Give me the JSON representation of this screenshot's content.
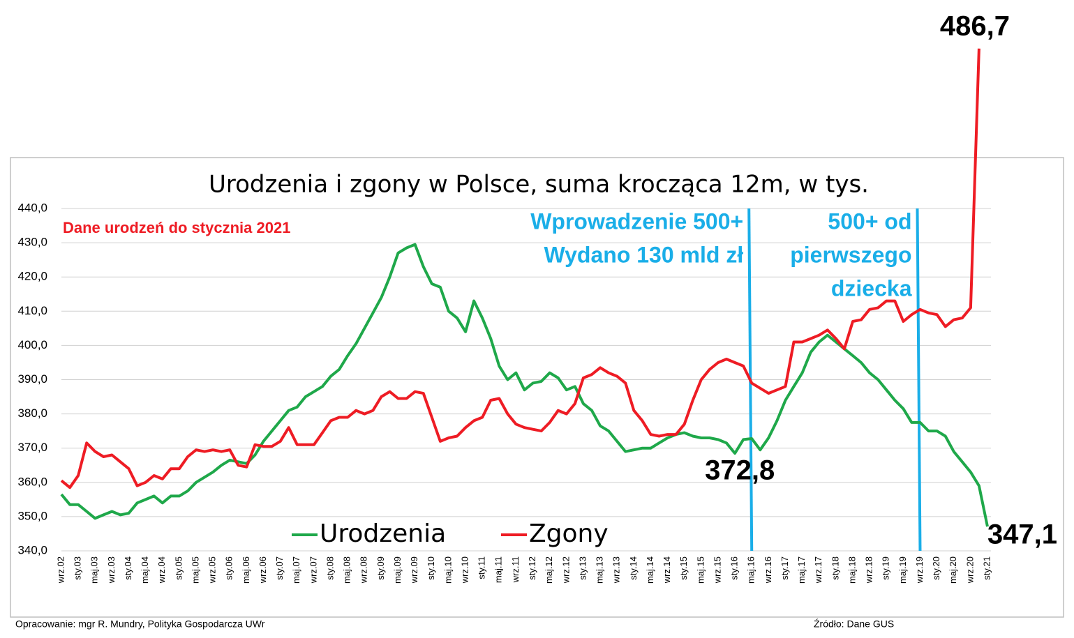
{
  "chart_data": {
    "type": "line",
    "title": "Urodzenia i zgony w Polsce, suma krocząca 12m, w tys.",
    "note": "Dane urodzeń do stycznia 2021",
    "footer_left": "Opracowanie: mgr R. Mundry, Polityka Gospodarcza UWr",
    "footer_right": "Źródło: Dane GUS",
    "annotations": [
      {
        "at": "maj.16",
        "lines": [
          "Wprowadzenie 500+",
          "Wydano 130 mld zł"
        ],
        "color": "#1aaee8"
      },
      {
        "at": "wrz.19",
        "lines": [
          "500+ od",
          "pierwszego",
          "dziecka"
        ],
        "color": "#1aaee8"
      }
    ],
    "ylim": [
      340,
      440
    ],
    "yticks": [
      {
        "value": 340,
        "label": "340,0"
      },
      {
        "value": 350,
        "label": "350,0"
      },
      {
        "value": 360,
        "label": "360,0"
      },
      {
        "value": 370,
        "label": "370,0"
      },
      {
        "value": 380,
        "label": "380,0"
      },
      {
        "value": 390,
        "label": "390,0"
      },
      {
        "value": 400,
        "label": "400,0"
      },
      {
        "value": 410,
        "label": "410,0"
      },
      {
        "value": 420,
        "label": "420,0"
      },
      {
        "value": 430,
        "label": "430,0"
      },
      {
        "value": 440,
        "label": "440,0"
      }
    ],
    "grid": true,
    "categories": [
      "wrz.02",
      null,
      "sty.03",
      null,
      "maj.03",
      null,
      "wrz.03",
      null,
      "sty.04",
      null,
      "maj.04",
      null,
      "wrz.04",
      null,
      "sty.05",
      null,
      "maj.05",
      null,
      "wrz.05",
      null,
      "sty.06",
      null,
      "maj.06",
      null,
      "wrz.06",
      null,
      "sty.07",
      null,
      "maj.07",
      null,
      "wrz.07",
      null,
      "sty.08",
      null,
      "maj.08",
      null,
      "wrz.08",
      null,
      "sty.09",
      null,
      "maj.09",
      null,
      "wrz.09",
      null,
      "sty.10",
      null,
      "maj.10",
      null,
      "wrz.10",
      null,
      "sty.11",
      null,
      "maj.11",
      null,
      "wrz.11",
      null,
      "sty.12",
      null,
      "maj.12",
      null,
      "wrz.12",
      null,
      "sty.13",
      null,
      "maj.13",
      null,
      "wrz.13",
      null,
      "sty.14",
      null,
      "maj.14",
      null,
      "wrz.14",
      null,
      "sty.15",
      null,
      "maj.15",
      null,
      "wrz.15",
      null,
      "sty.16",
      null,
      "maj.16",
      null,
      "wrz.16",
      null,
      "sty.17",
      null,
      "maj.17",
      null,
      "wrz.17",
      null,
      "sty.18",
      null,
      "maj.18",
      null,
      "wrz.18",
      null,
      "sty.19",
      null,
      "maj.19",
      null,
      "wrz.19",
      null,
      "sty.20",
      null,
      "maj.20",
      null,
      "wrz.20",
      null,
      "sty.21"
    ],
    "series": [
      {
        "name": "Urodzenia",
        "color": "#1fa84a",
        "values": [
          356.5,
          353.5,
          353.5,
          351.5,
          349.5,
          350.5,
          351.5,
          350.5,
          351,
          354,
          355,
          356,
          354,
          356,
          356,
          357.5,
          360,
          361.5,
          363,
          365,
          366.5,
          366,
          365.5,
          368,
          372,
          375,
          378,
          381,
          382,
          385,
          386.5,
          388,
          391,
          393,
          397,
          400.5,
          405,
          409.5,
          414,
          420,
          427,
          428.5,
          429.5,
          423,
          418,
          417,
          410,
          408,
          404,
          413,
          408,
          402,
          394,
          390,
          392,
          387,
          389,
          389.5,
          392,
          390.5,
          387,
          388,
          383,
          381,
          376.5,
          375,
          372,
          369,
          369.5,
          370,
          370,
          371.5,
          373,
          374,
          374.5,
          373.5,
          373,
          373,
          372.5,
          371.5,
          368.5,
          372.5,
          372.8,
          369.5,
          373,
          378,
          384,
          388,
          392,
          398,
          401,
          403,
          401,
          399,
          397,
          395,
          392,
          390,
          387,
          384,
          381.5,
          377.5,
          377.5,
          375,
          375,
          373.5,
          369,
          366,
          363,
          359,
          347.1
        ],
        "value_labels": [
          null,
          null,
          null,
          null,
          null,
          null,
          null,
          null,
          null,
          null,
          null,
          null,
          null,
          null,
          null,
          null,
          null,
          null,
          null,
          null,
          null,
          null,
          null,
          null,
          null,
          null,
          null,
          null,
          null,
          null,
          null,
          null,
          null,
          null,
          null,
          null,
          null,
          null,
          null,
          null,
          null,
          null,
          null,
          null,
          null,
          null,
          null,
          null,
          null,
          null,
          null,
          null,
          null,
          null,
          null,
          null,
          null,
          null,
          null,
          null,
          null,
          null,
          null,
          null,
          null,
          null,
          null,
          null,
          null,
          null,
          null,
          null,
          null,
          null,
          null,
          null,
          null,
          null,
          null,
          null,
          null,
          null,
          "372,8",
          null,
          null,
          null,
          null,
          null,
          null,
          null,
          null,
          null,
          null,
          null,
          null,
          null,
          null,
          null,
          null,
          null,
          null,
          null,
          null,
          null,
          null,
          null,
          null,
          null,
          null,
          null,
          "347,1"
        ]
      },
      {
        "name": "Zgony",
        "color": "#ee1c24",
        "values": [
          360.5,
          358.5,
          362,
          371.5,
          369,
          367.5,
          368,
          366,
          364,
          359,
          360,
          362,
          361,
          364,
          364,
          367.5,
          369.5,
          369,
          369.5,
          369,
          369.5,
          365,
          364.5,
          371,
          370.5,
          370.5,
          372,
          376,
          371,
          371,
          371,
          374.5,
          378,
          379,
          379,
          381,
          380,
          381,
          385,
          386.5,
          384.5,
          384.5,
          386.5,
          386,
          379,
          372,
          373,
          373.5,
          376,
          378,
          379,
          384,
          384.5,
          380,
          377,
          376,
          375.5,
          375,
          377.5,
          381,
          380,
          383,
          390.5,
          391.5,
          393.5,
          392,
          391,
          389,
          381,
          378,
          374,
          373.5,
          374,
          374,
          377,
          384,
          390,
          393,
          395,
          396,
          395,
          394,
          389,
          387.5,
          386,
          387,
          388,
          401,
          401,
          402,
          403,
          404.5,
          402,
          399,
          407,
          407.5,
          410.5,
          411,
          413,
          413,
          407,
          409,
          410.5,
          409.5,
          409,
          405.5,
          407.5,
          408,
          411,
          486.7,
          null
        ],
        "value_labels": [
          null,
          null,
          null,
          null,
          null,
          null,
          null,
          null,
          null,
          null,
          null,
          null,
          null,
          null,
          null,
          null,
          null,
          null,
          null,
          null,
          null,
          null,
          null,
          null,
          null,
          null,
          null,
          null,
          null,
          null,
          null,
          null,
          null,
          null,
          null,
          null,
          null,
          null,
          null,
          null,
          null,
          null,
          null,
          null,
          null,
          null,
          null,
          null,
          null,
          null,
          null,
          null,
          null,
          null,
          null,
          null,
          null,
          null,
          null,
          null,
          null,
          null,
          null,
          null,
          null,
          null,
          null,
          null,
          null,
          null,
          null,
          null,
          null,
          null,
          null,
          null,
          null,
          null,
          null,
          null,
          null,
          null,
          null,
          null,
          null,
          null,
          null,
          null,
          null,
          null,
          null,
          null,
          null,
          null,
          null,
          null,
          null,
          null,
          null,
          null,
          null,
          null,
          null,
          null,
          null,
          null,
          null,
          null,
          null,
          "486,7",
          null
        ]
      }
    ]
  }
}
